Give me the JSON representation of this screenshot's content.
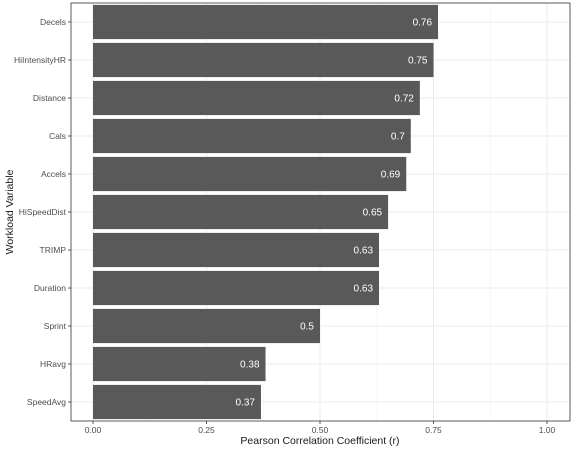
{
  "chart_data": {
    "type": "bar",
    "orientation": "horizontal",
    "title": "",
    "xlabel": "Pearson Correlation Coefficient (r)",
    "ylabel": "Workload Variable",
    "xlim": [
      0,
      1
    ],
    "x_ticks": [
      0,
      0.25,
      0.5,
      0.75,
      1
    ],
    "x_tick_labels": [
      "0.00",
      "0.25",
      "0.50",
      "0.75",
      "1.00"
    ],
    "grid": true,
    "categories": [
      "Decels",
      "HiIntensityHR",
      "Distance",
      "Cals",
      "Accels",
      "HiSpeedDist",
      "TRIMP",
      "Duration",
      "Sprint",
      "HRavg",
      "SpeedAvg"
    ],
    "values": [
      0.76,
      0.75,
      0.72,
      0.7,
      0.69,
      0.65,
      0.63,
      0.63,
      0.5,
      0.38,
      0.37
    ],
    "data_labels": [
      "0.76",
      "0.75",
      "0.72",
      "0.7",
      "0.69",
      "0.65",
      "0.63",
      "0.63",
      "0.5",
      "0.38",
      "0.37"
    ],
    "colors": {
      "bar": "#595959",
      "bar_label": "#ffffff",
      "grid": "#ebebeb",
      "panel_border": "#333333",
      "background": "#ffffff"
    }
  }
}
